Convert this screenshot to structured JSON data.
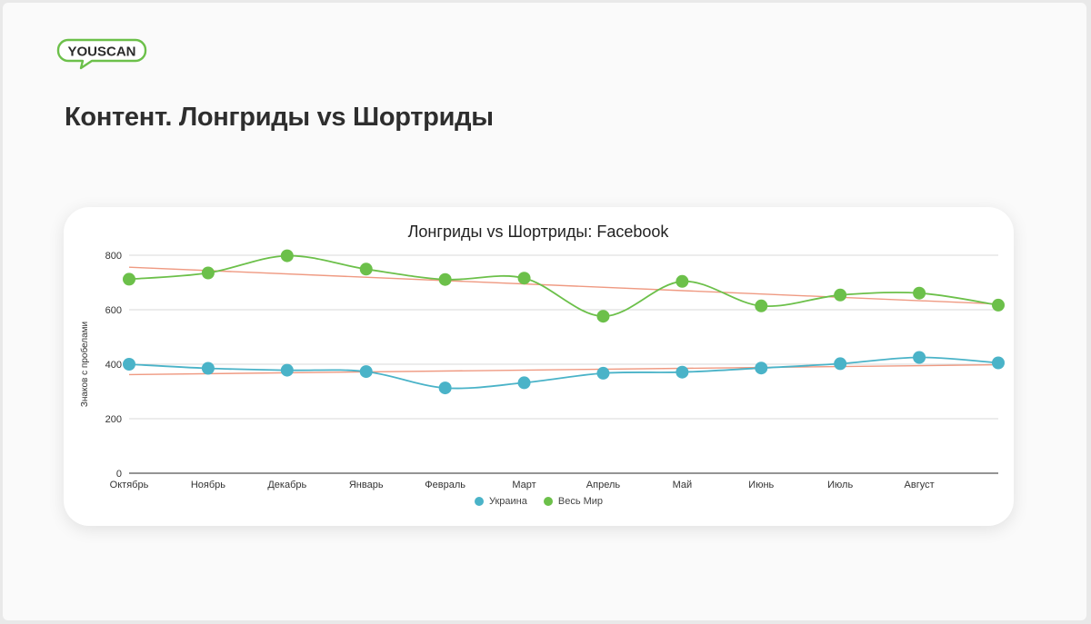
{
  "brand": {
    "name": "YOUSCAN",
    "color": "#6cc04a"
  },
  "page": {
    "title": "Контент. Лонгриды vs Шортриды"
  },
  "chart_data": {
    "type": "line",
    "title": "Лонгриды vs Шортриды: Facebook",
    "xlabel": "",
    "ylabel": "Знаков с пробелами",
    "ylim": [
      0,
      800
    ],
    "yticks": [
      0,
      200,
      400,
      600,
      800
    ],
    "categories": [
      "Октябрь",
      "Ноябрь",
      "Декабрь",
      "Январь",
      "Февраль",
      "Март",
      "Апрель",
      "Май",
      "Июнь",
      "Июль",
      "Август",
      ""
    ],
    "series": [
      {
        "name": "Украина",
        "color": "#4ab3c8",
        "values": [
          400,
          385,
          378,
          373,
          313,
          332,
          367,
          371,
          386,
          402,
          425,
          405
        ],
        "trendline": {
          "color": "#ef9a82",
          "start": 362,
          "end": 398
        }
      },
      {
        "name": "Весь Мир",
        "color": "#6cc04a",
        "values": [
          712,
          735,
          798,
          749,
          711,
          716,
          576,
          704,
          614,
          654,
          661,
          617
        ],
        "trendline": {
          "color": "#ef9a82",
          "start": 756,
          "end": 621
        }
      }
    ],
    "legend": "bottom"
  }
}
